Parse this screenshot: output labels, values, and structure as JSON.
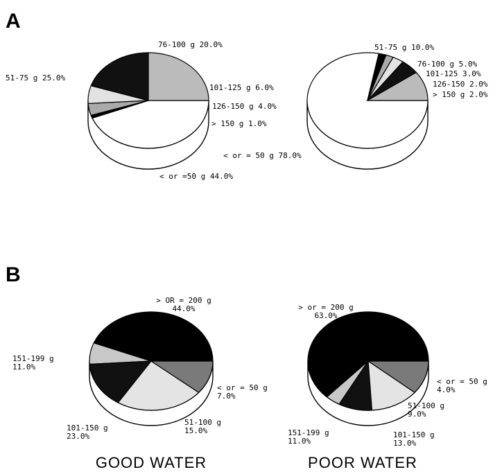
{
  "panels": {
    "A": {
      "letter": "A"
    },
    "B": {
      "letter": "B"
    }
  },
  "captions": {
    "good": "GOOD WATER",
    "poor": "POOR WATER"
  },
  "chart_data": [
    {
      "type": "pie",
      "panel": "A",
      "slices": [
        {
          "label": "< or =50 g 44.0%",
          "value": 44.0,
          "color": "#ffffff"
        },
        {
          "label": "> 150 g 1.0%",
          "value": 1.0,
          "color": "#000000"
        },
        {
          "label": "126-150 g 4.0%",
          "value": 4.0,
          "color": "#aaaaaa"
        },
        {
          "label": "101-125 g 6.0%",
          "value": 6.0,
          "color": "#e2e2e2"
        },
        {
          "label": "76-100 g 20.0%",
          "value": 20.0,
          "color": "#111111"
        },
        {
          "label": "51-75 g 25.0%",
          "value": 25.0,
          "color": "#bbbbbb"
        }
      ]
    },
    {
      "type": "pie",
      "panel": "A",
      "slices": [
        {
          "label": "< or = 50 g 78.0%",
          "value": 78.0,
          "color": "#ffffff"
        },
        {
          "label": "> 150 g 2.0%",
          "value": 2.0,
          "color": "#000000"
        },
        {
          "label": "126-150 2.0%",
          "value": 2.0,
          "color": "#aaaaaa"
        },
        {
          "label": "101-125 3.0%",
          "value": 3.0,
          "color": "#e2e2e2"
        },
        {
          "label": "76-100 g 5.0%",
          "value": 5.0,
          "color": "#111111"
        },
        {
          "label": "51-75 g 10.0%",
          "value": 10.0,
          "color": "#bbbbbb"
        }
      ]
    },
    {
      "type": "pie",
      "panel": "B",
      "caption": "GOOD WATER",
      "slices": [
        {
          "label_lines": [
            "> OR = 200 g",
            "44.0%"
          ],
          "value": 44.0,
          "color": "#000000"
        },
        {
          "label_lines": [
            "< or = 50 g",
            "7.0%"
          ],
          "value": 7.0,
          "color": "#c8c8c8"
        },
        {
          "label_lines": [
            "51-100 g",
            "15.0%"
          ],
          "value": 15.0,
          "color": "#111111"
        },
        {
          "label_lines": [
            "101-150 g",
            "23.0%"
          ],
          "value": 23.0,
          "color": "#e4e4e4"
        },
        {
          "label_lines": [
            "151-199 g",
            "11.0%"
          ],
          "value": 11.0,
          "color": "#7a7a7a"
        }
      ]
    },
    {
      "type": "pie",
      "panel": "B",
      "caption": "POOR WATER",
      "slices": [
        {
          "label_lines": [
            "> or = 200 g",
            "63.0%"
          ],
          "value": 63.0,
          "color": "#000000"
        },
        {
          "label_lines": [
            "< or = 50 g",
            "4.0%"
          ],
          "value": 4.0,
          "color": "#c8c8c8"
        },
        {
          "label_lines": [
            "51-100 g",
            "9.0%"
          ],
          "value": 9.0,
          "color": "#111111"
        },
        {
          "label_lines": [
            "101-150 g",
            "13.0%"
          ],
          "value": 13.0,
          "color": "#e4e4e4"
        },
        {
          "label_lines": [
            "151-199 g",
            "11.0%"
          ],
          "value": 11.0,
          "color": "#7a7a7a"
        }
      ]
    }
  ]
}
